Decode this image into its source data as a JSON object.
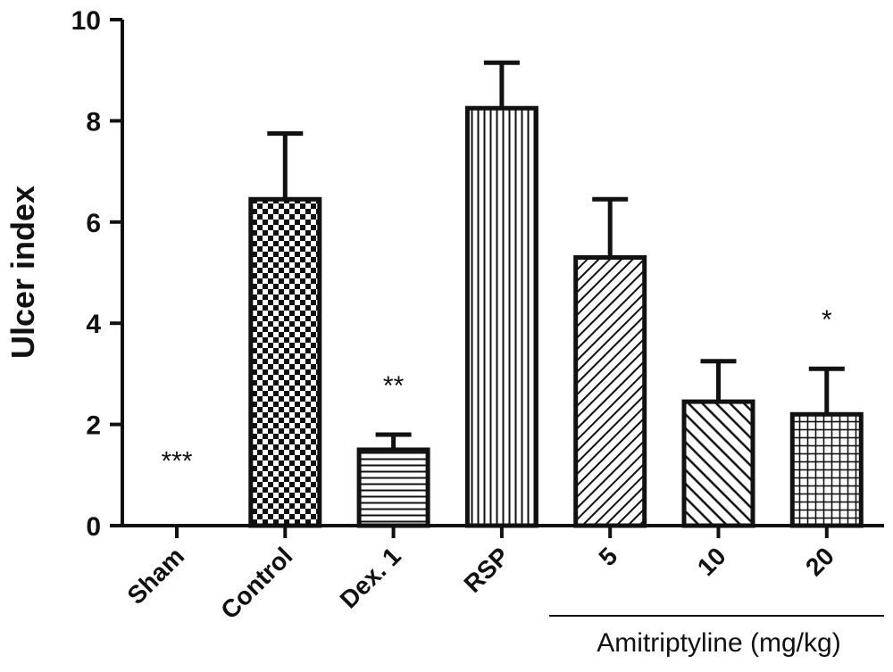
{
  "chart_data": {
    "type": "bar",
    "title": "",
    "xlabel": "",
    "ylabel": "Ulcer index",
    "ylim": [
      0,
      10
    ],
    "yticks": [
      "0",
      "2",
      "4",
      "6",
      "8",
      "10"
    ],
    "grid": false,
    "categories": [
      "Sham",
      "Control",
      "Dex. 1",
      "RSP",
      "5",
      "10",
      "20"
    ],
    "values": [
      0,
      6.45,
      1.5,
      8.25,
      5.3,
      2.45,
      2.2
    ],
    "errors": [
      0,
      1.3,
      0.3,
      0.9,
      1.15,
      0.8,
      0.9
    ],
    "patterns": [
      "none",
      "checker",
      "hlines",
      "vlines",
      "diag-fine",
      "diag-coarse",
      "grid"
    ],
    "annotations": [
      "***",
      "",
      "**",
      "",
      "",
      "",
      "*"
    ],
    "group_label": "Amitriptyline (mg/kg)",
    "colors": {
      "ink": "#111111",
      "background": "#ffffff"
    }
  }
}
